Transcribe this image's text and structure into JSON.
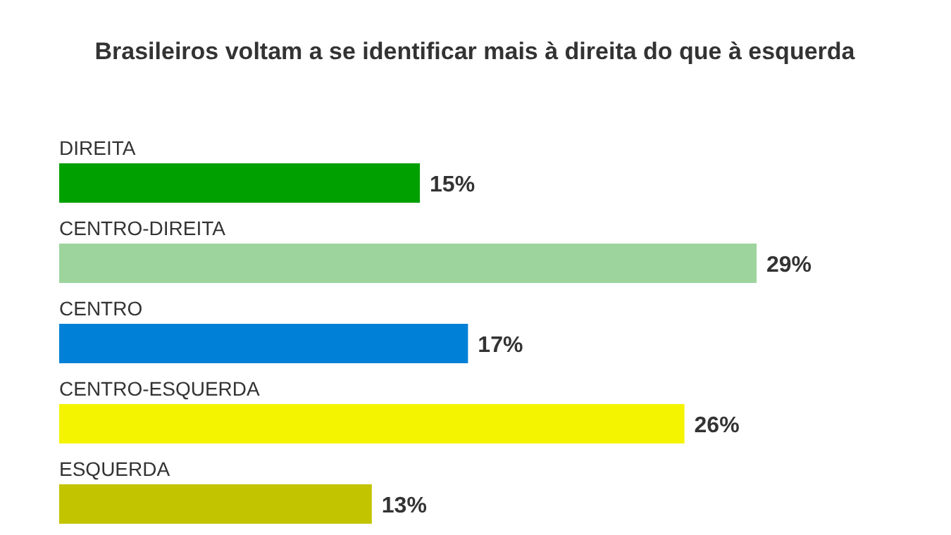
{
  "chart_data": {
    "type": "bar",
    "orientation": "horizontal",
    "title": "Brasileiros voltam a se identificar mais à direita do que à esquerda",
    "categories": [
      "DIREITA",
      "CENTRO-DIREITA",
      "CENTRO",
      "CENTRO-ESQUERDA",
      "ESQUERDA"
    ],
    "values": [
      15,
      29,
      17,
      26,
      13
    ],
    "colors": [
      "#00a000",
      "#9dd49d",
      "#0080d6",
      "#f4f400",
      "#c2c400"
    ],
    "value_labels": [
      "15%",
      "29%",
      "17%",
      "26%",
      "13%"
    ]
  }
}
